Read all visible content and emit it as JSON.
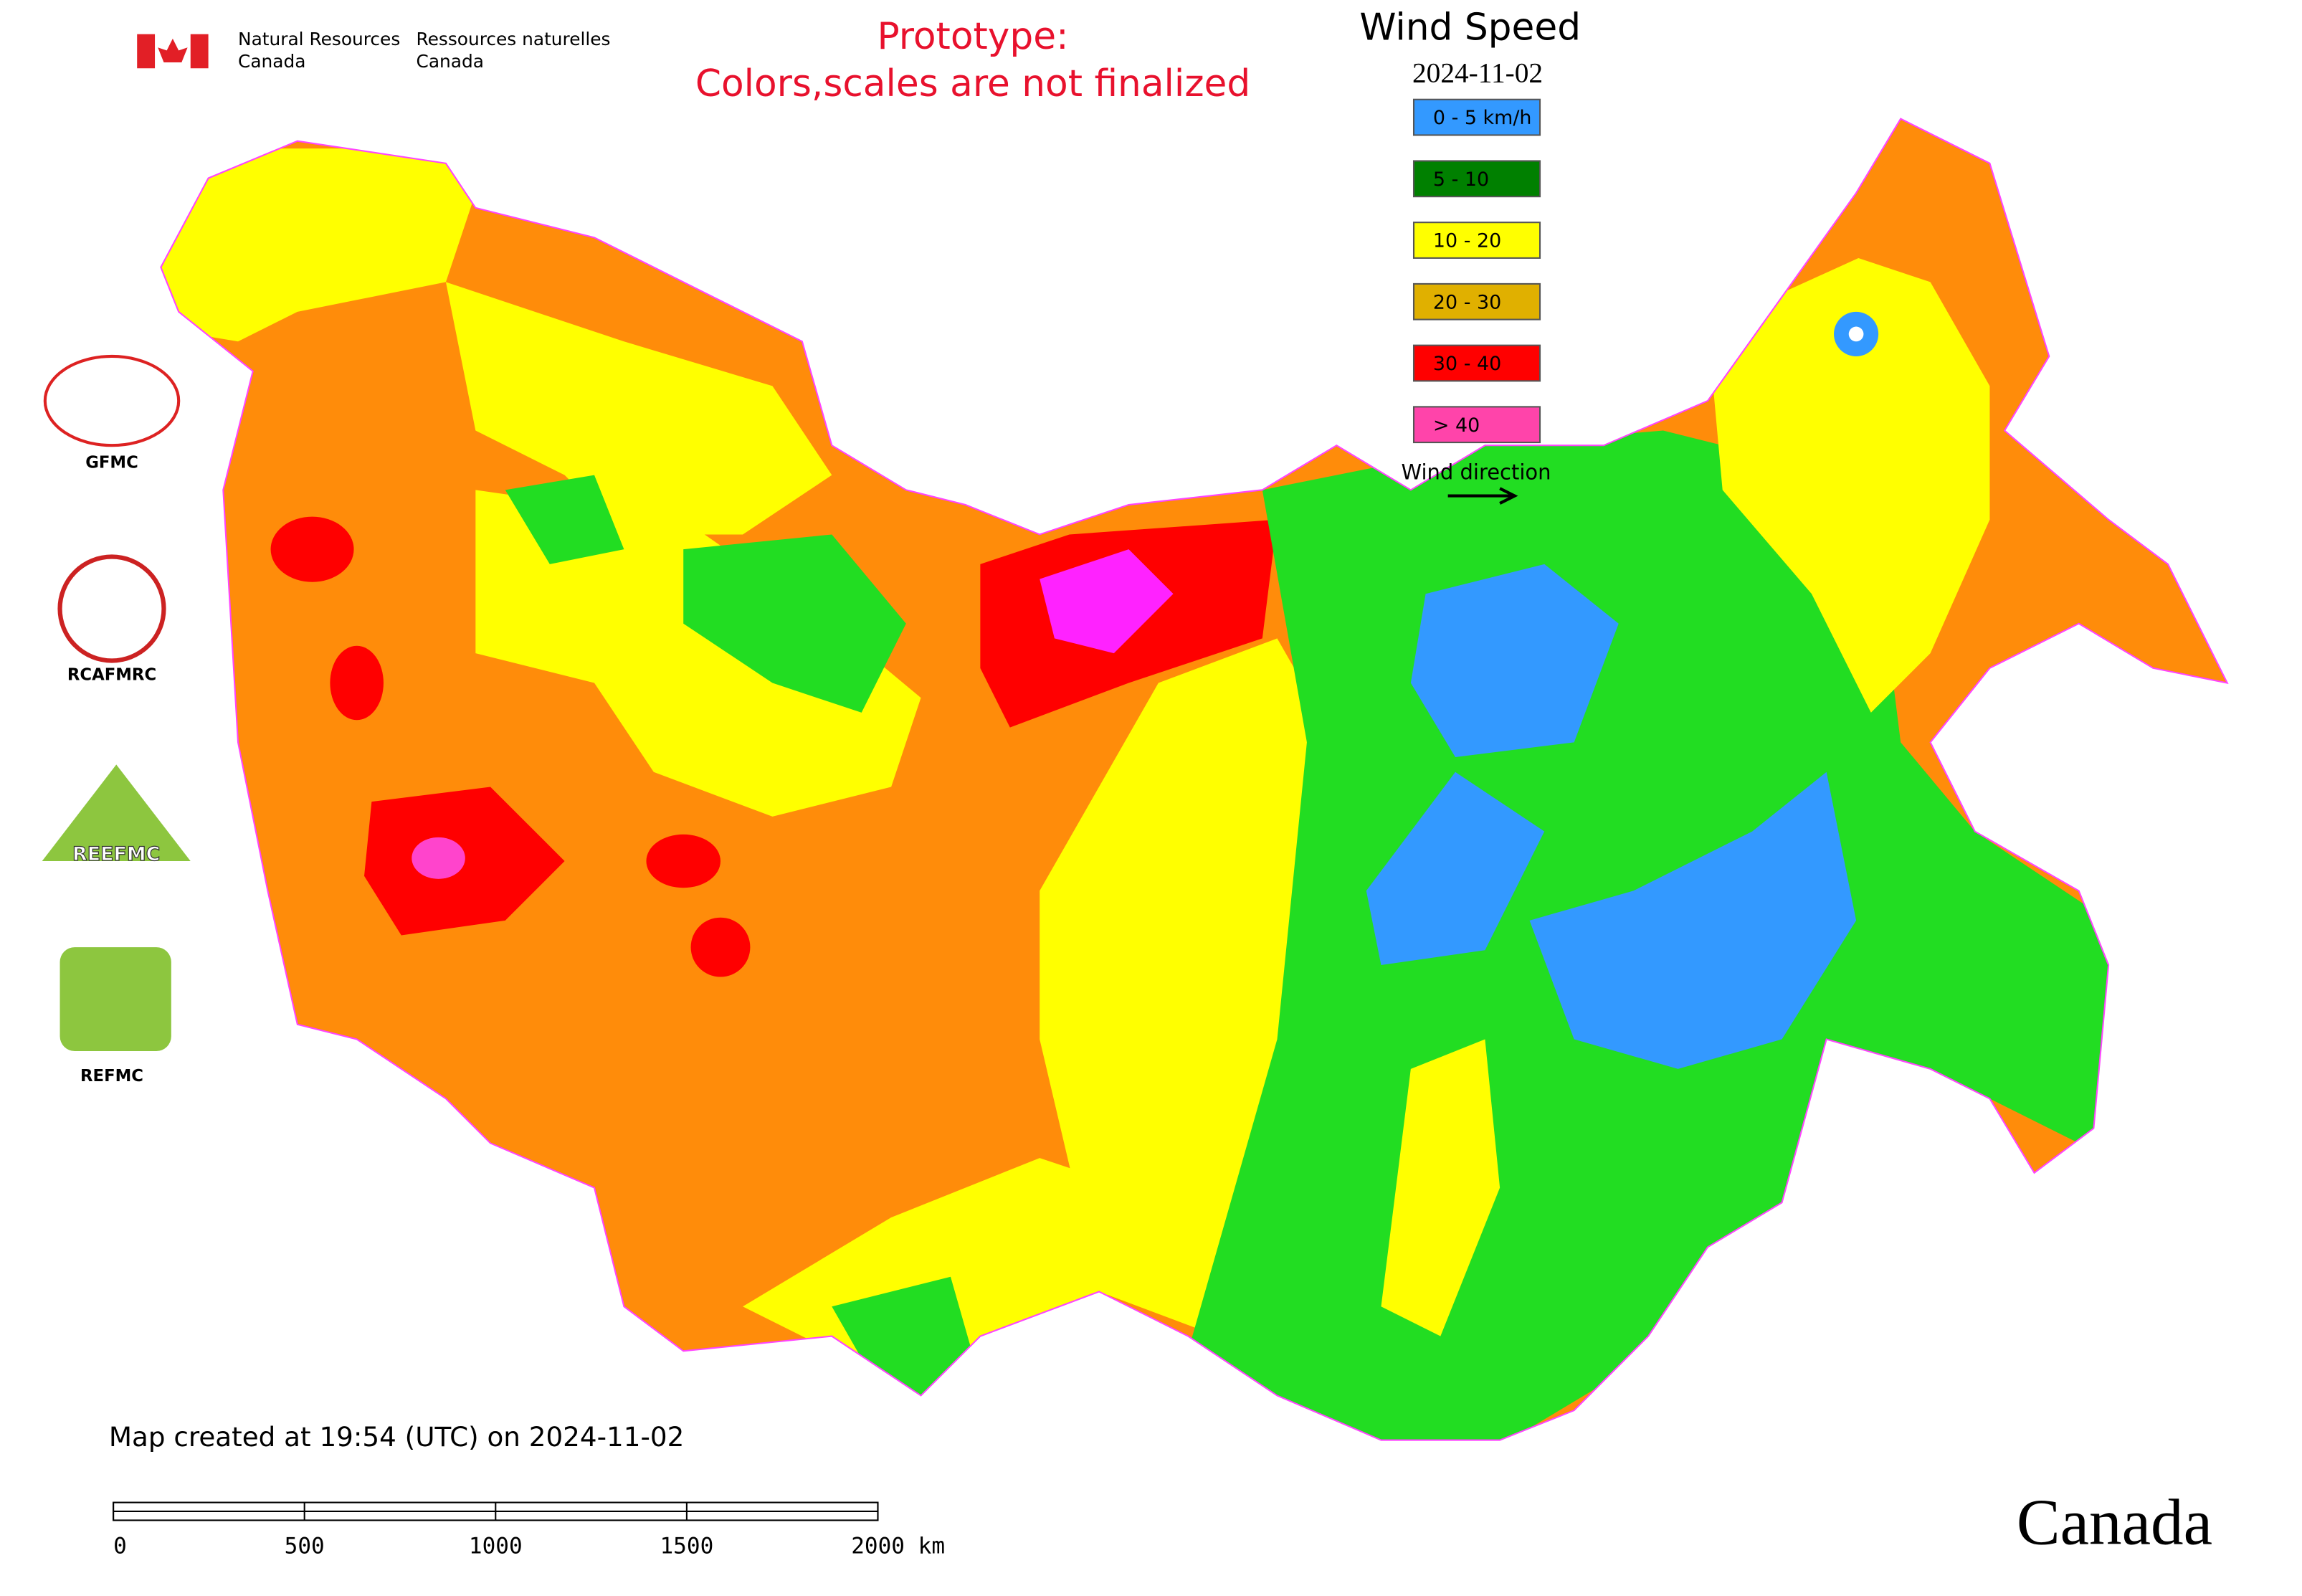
{
  "header": {
    "agency_en": [
      "Natural Resources",
      "Canada"
    ],
    "agency_fr": [
      "Ressources naturelles",
      "Canada"
    ],
    "notice": [
      "Prototype:",
      "Colors,scales are not finalized"
    ]
  },
  "legend": {
    "title": "Wind Speed",
    "date": "2024-11-02",
    "items": [
      {
        "label": "0 - 5 km/h",
        "color": "#3399ff"
      },
      {
        "label": "5 - 10",
        "color": "#008000"
      },
      {
        "label": "10 - 20",
        "color": "#ffff00"
      },
      {
        "label": "20 - 30",
        "color": "#e0b000"
      },
      {
        "label": "30 - 40",
        "color": "#ff0000"
      },
      {
        "label": "> 40",
        "color": "#ff44aa"
      }
    ],
    "direction": "Wind direction"
  },
  "logos": [
    "GFMC",
    "RCAFMRC",
    "REEFMC",
    "REFMC"
  ],
  "footer": {
    "created": "Map created at 19:54 (UTC) on 2024-11-02",
    "wordmark": "Canada"
  },
  "scale_bar": [
    "0",
    "500",
    "1000",
    "1500",
    "2000 km"
  ]
}
